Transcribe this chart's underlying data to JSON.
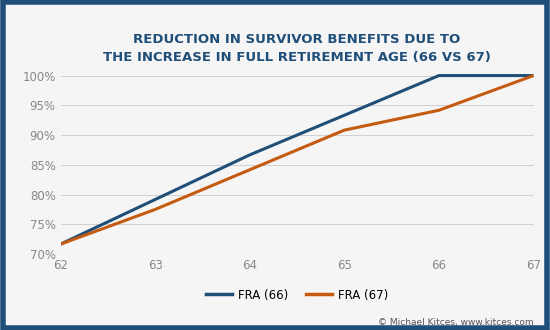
{
  "title_line1": "REDUCTION IN SURVIVOR BENEFITS DUE TO",
  "title_line2": "THE INCREASE IN FULL RETIREMENT AGE (66 VS 67)",
  "fra66_x": [
    62,
    63,
    64,
    65,
    66,
    67
  ],
  "fra66_y": [
    0.7167,
    0.7917,
    0.8667,
    0.9333,
    1.0,
    1.0
  ],
  "fra67_x": [
    62,
    63,
    64,
    65,
    66,
    67
  ],
  "fra67_y": [
    0.7167,
    0.775,
    0.8417,
    0.9083,
    0.9417,
    1.0
  ],
  "fra66_color": "#1f4e79",
  "fra67_color": "#c55a11",
  "background_color": "#f5f5f5",
  "plot_bg_color": "#f5f5f5",
  "border_color": "#1f4e79",
  "grid_color": "#d0d0d0",
  "title_color": "#1f4e79",
  "tick_color": "#888888",
  "legend_label_66": "FRA (66)",
  "legend_label_67": "FRA (67)",
  "xlim": [
    62,
    67
  ],
  "ylim": [
    0.7,
    1.005
  ],
  "yticks": [
    0.7,
    0.75,
    0.8,
    0.85,
    0.9,
    0.95,
    1.0
  ],
  "xticks": [
    62,
    63,
    64,
    65,
    66,
    67
  ],
  "watermark": "© Michael Kitces, www.kitces.com",
  "line_width": 2.2,
  "title_fontsize": 9.5,
  "tick_fontsize": 8.5
}
